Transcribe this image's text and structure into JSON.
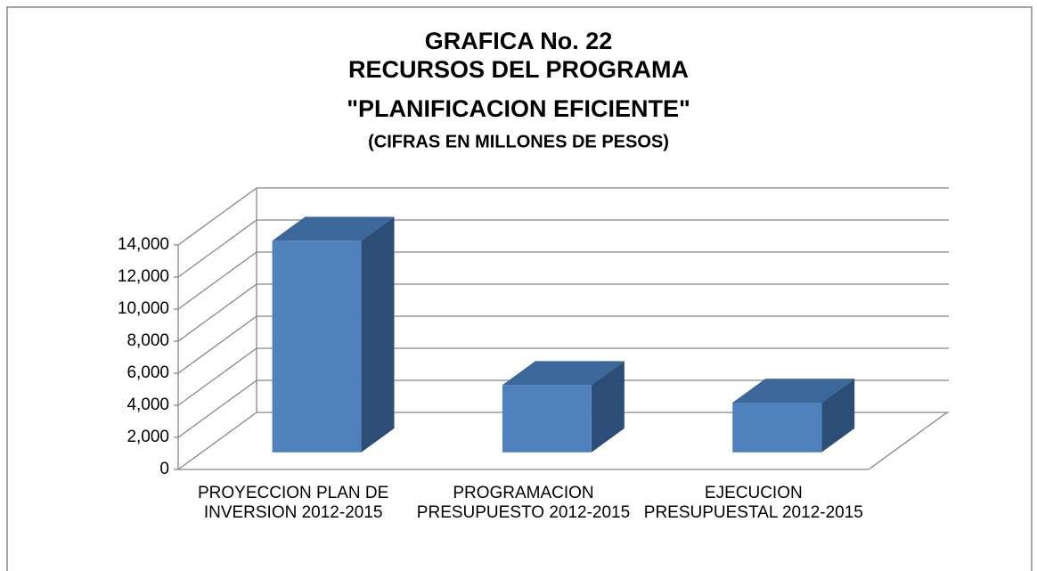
{
  "chart_data": {
    "type": "bar3d",
    "title": "GRAFICA No. 22",
    "title_line2": "RECURSOS DEL PROGRAMA",
    "title_line3": "\"PLANIFICACION EFICIENTE\"",
    "subtitle": "(CIFRAS EN MILLONES DE PESOS)",
    "categories": [
      "PROYECCION PLAN DE INVERSION 2012-2015",
      "PROGRAMACION PRESUPUESTO 2012-2015",
      "EJECUCION PRESUPUESTAL 2012-2015"
    ],
    "values": [
      13200,
      4200,
      3100
    ],
    "color": "#4f81bd",
    "ylim": [
      0,
      14000
    ],
    "yticks": [
      0,
      {
        "value": 2000,
        "label": "2,000"
      },
      {
        "value": 4000,
        "label": "4,000"
      },
      {
        "value": 6000,
        "label": "6,000"
      },
      {
        "value": 8000,
        "label": "8,000"
      },
      {
        "value": 10000,
        "label": "10,000"
      },
      {
        "value": 12000,
        "label": "12,000"
      },
      {
        "value": 14000,
        "label": "14,000"
      }
    ],
    "grid": true
  }
}
